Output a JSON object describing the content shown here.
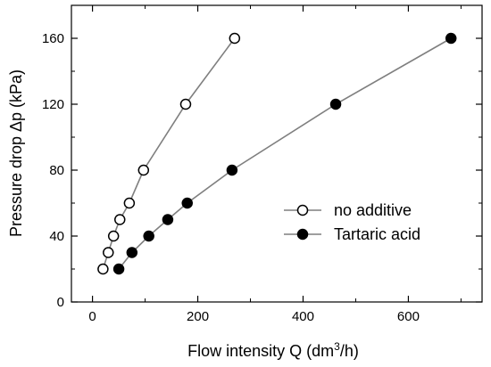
{
  "chart_data": {
    "type": "scatter",
    "xlabel": "Flow intensity Q (dm³/h)",
    "xlabel_parts": {
      "main": "Flow intensity Q (dm",
      "superscript": "3",
      "tail": "/h)"
    },
    "ylabel": "Pressure drop Δp (kPa)",
    "xlim": [
      -40,
      740
    ],
    "ylim": [
      0,
      180
    ],
    "xticks": [
      0,
      200,
      400,
      600
    ],
    "yticks": [
      0,
      40,
      80,
      120,
      160
    ],
    "grid": false,
    "legend_position": "center-right",
    "series": [
      {
        "name": "no additive",
        "marker": "open-circle",
        "color": "#7f7f7f",
        "x": [
          20,
          30,
          40,
          52,
          70,
          97,
          177,
          270
        ],
        "y": [
          20,
          30,
          40,
          50,
          60,
          80,
          120,
          160
        ]
      },
      {
        "name": "Tartaric acid",
        "marker": "filled-circle",
        "color": "#7f7f7f",
        "x": [
          50,
          75,
          107,
          143,
          180,
          265,
          462,
          681
        ],
        "y": [
          20,
          30,
          40,
          50,
          60,
          80,
          120,
          160
        ]
      }
    ]
  }
}
